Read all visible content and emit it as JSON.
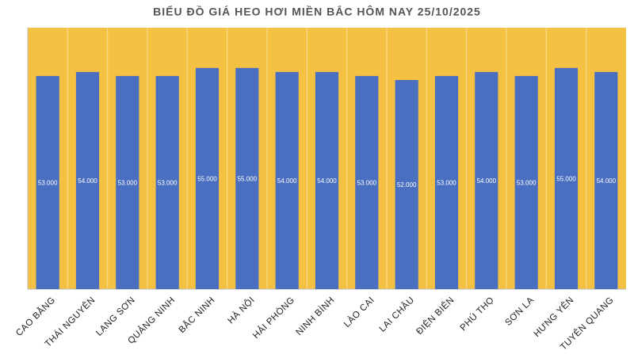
{
  "chart_data": {
    "type": "bar",
    "title": "BIỂU ĐỒ GIÁ HEO HƠI MIỀN BẮC HÔM NAY 25/10/2025",
    "categories": [
      "CAO BẰNG",
      "THÁI NGUYÊN",
      "LẠNG SƠN",
      "QUẢNG NINH",
      "BẮC NINH",
      "HÀ NỘI",
      "HẢI PHÒNG",
      "NINH BÌNH",
      "LÀO CAI",
      "LAI CHÂU",
      "ĐIỆN BIÊN",
      "PHÚ THỌ",
      "SƠN LA",
      "HƯNG YÊN",
      "TUYÊN QUANG"
    ],
    "values": [
      53000,
      54000,
      53000,
      53000,
      55000,
      55000,
      54000,
      54000,
      53000,
      52000,
      53000,
      54000,
      53000,
      55000,
      54000
    ],
    "value_labels": [
      "53.000",
      "54.000",
      "53.000",
      "53.000",
      "55.000",
      "55.000",
      "54.000",
      "54.000",
      "53.000",
      "52.000",
      "53.000",
      "54.000",
      "53.000",
      "55.000",
      "54.000"
    ],
    "color": "#4a6fc1",
    "background": "#f5c142",
    "ylim": [
      0,
      65000
    ]
  }
}
